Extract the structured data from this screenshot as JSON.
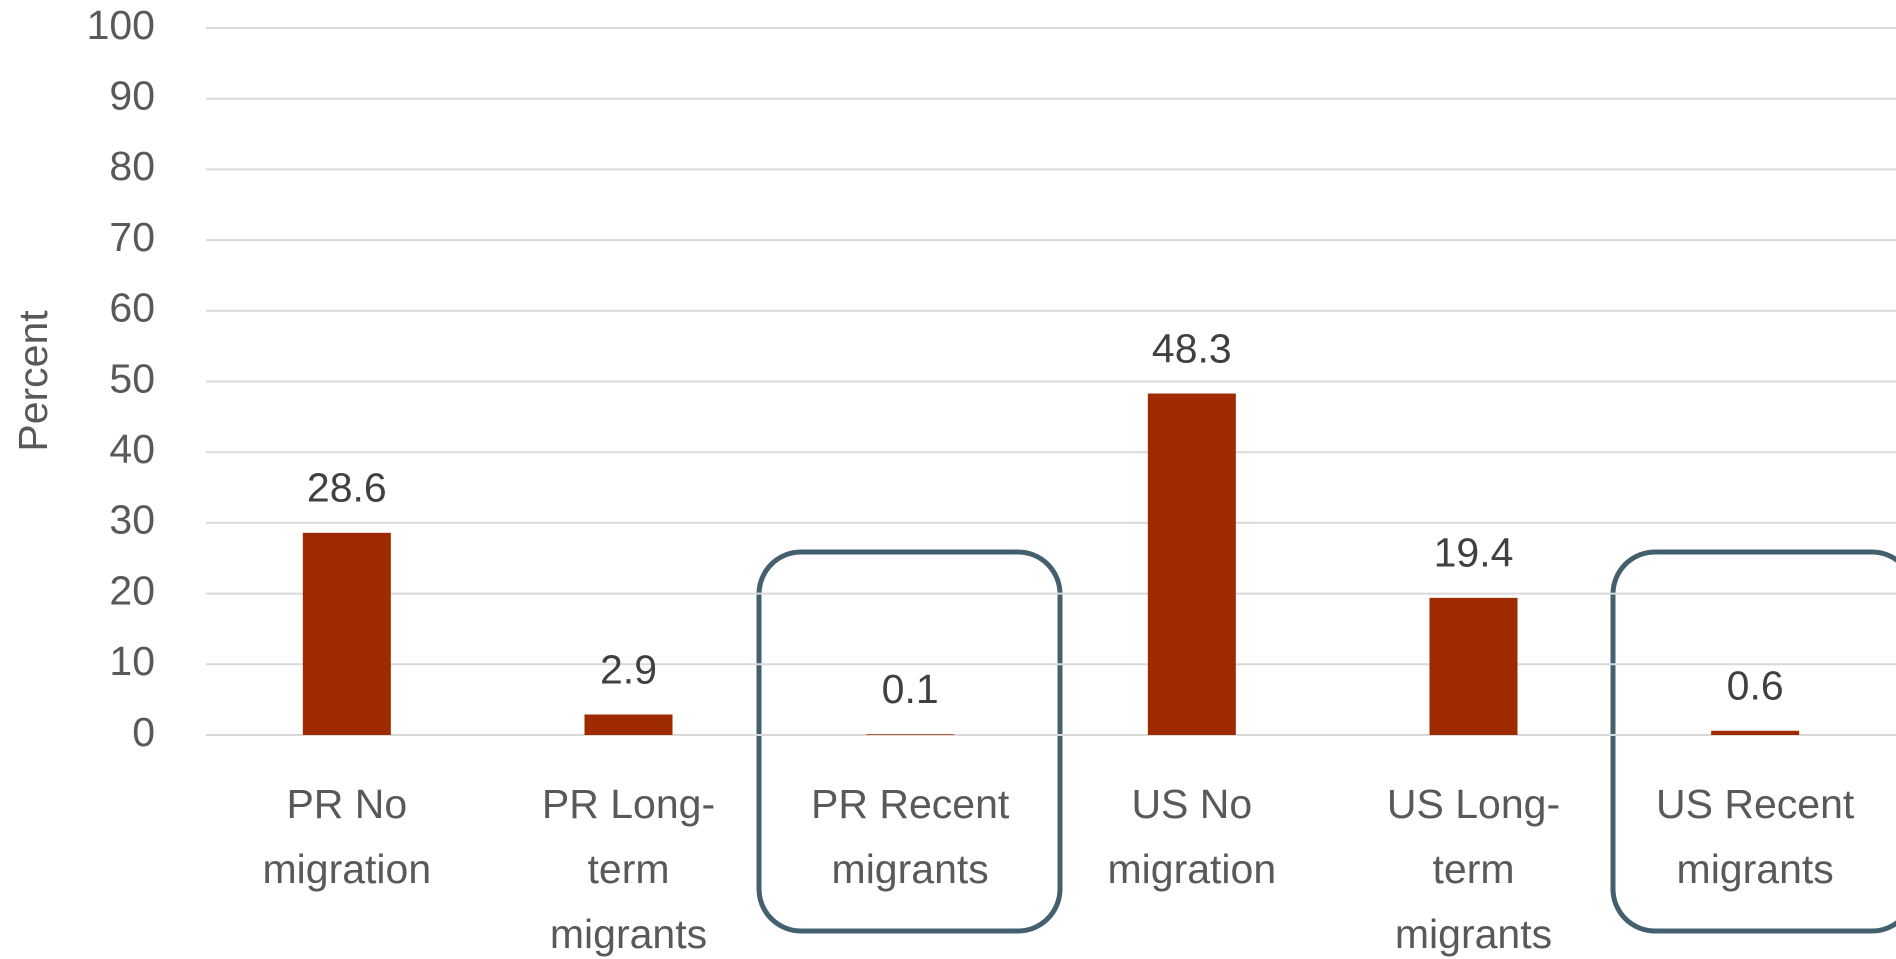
{
  "chart_data": {
    "type": "bar",
    "y_label": "Percent",
    "categories": [
      "PR No migration",
      "PR Long-term migrants",
      "PR Recent migrants",
      "US No migration",
      "US Long-term migrants",
      "US Recent migrants"
    ],
    "values": [
      28.6,
      2.9,
      0.1,
      48.3,
      19.4,
      0.6
    ],
    "color": "#9e2a00",
    "ylim": [
      0,
      100
    ],
    "yticks": [
      0,
      10,
      20,
      30,
      40,
      50,
      60,
      70,
      80,
      90,
      100
    ],
    "grid": true
  }
}
